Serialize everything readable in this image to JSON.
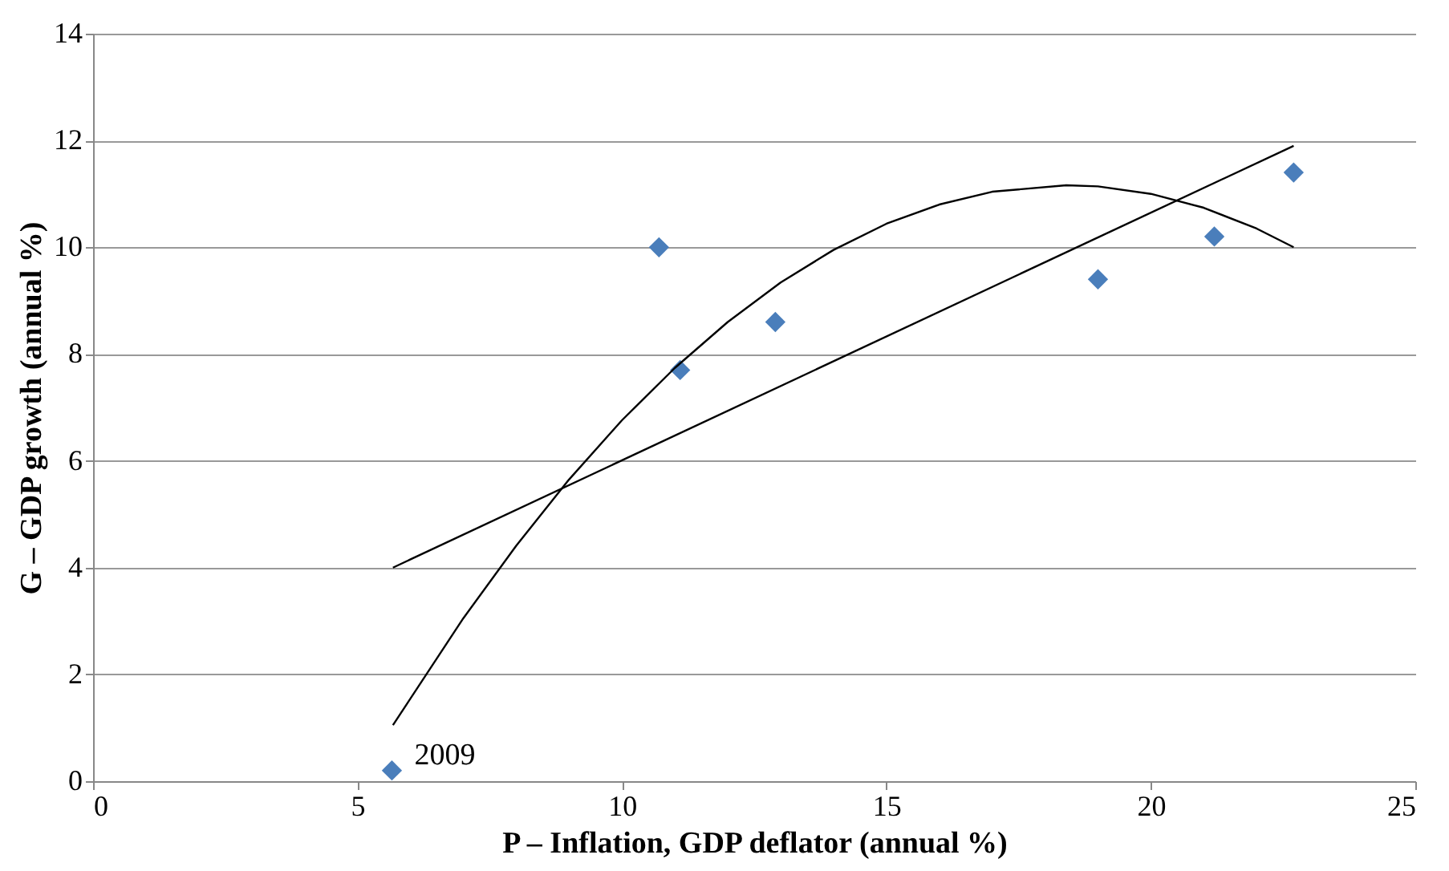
{
  "chart_data": {
    "type": "scatter",
    "xlabel": "P – Inflation, GDP deflator (annual %)",
    "ylabel": "G – GDP growth (annual %)",
    "xlim": [
      0,
      25
    ],
    "xticks": [
      0,
      5,
      10,
      15,
      20,
      25
    ],
    "ylim": [
      0,
      14
    ],
    "yticks": [
      0,
      2,
      4,
      6,
      8,
      10,
      12,
      14
    ],
    "grid": "y",
    "marker": "diamond",
    "series": [
      {
        "color": "#4a7ebb",
        "x": [
          5.65,
          10.7,
          11.1,
          12.9,
          19.0,
          21.2,
          22.7
        ],
        "values": [
          0.2,
          10.0,
          7.7,
          8.6,
          9.4,
          10.2,
          11.4
        ]
      },
      {
        "type": "line",
        "marker": "none",
        "color": "#000000",
        "x": [
          5.67,
          22.7
        ],
        "values": [
          4.0,
          11.9
        ]
      },
      {
        "type": "line",
        "marker": "none",
        "color": "#000000",
        "x": [
          5.67,
          7,
          8,
          9,
          10,
          11,
          12,
          13,
          14,
          15,
          16,
          17,
          18.4,
          19,
          20,
          21,
          22,
          22.7
        ],
        "values": [
          1.05,
          3.05,
          4.41,
          5.65,
          6.76,
          7.74,
          8.6,
          9.34,
          9.95,
          10.44,
          10.8,
          11.04,
          11.16,
          11.14,
          11.0,
          10.74,
          10.35,
          10.0
        ]
      }
    ],
    "annotations": [
      {
        "text": "2009",
        "x": 5.65,
        "y": 0.2
      }
    ]
  }
}
